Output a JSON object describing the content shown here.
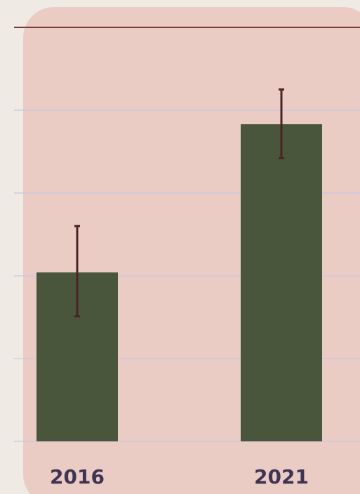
{
  "colors": {
    "page_background": "#efebe4",
    "plot_background": "#eaccc5",
    "bar": "#4a563b",
    "error_bar": "#4a2424",
    "gridline": "#c9c4e6",
    "top_line": "#7a3b36",
    "tick_label": "#3f3553"
  },
  "chart_data": {
    "type": "bar",
    "categories": [
      "2016",
      "2021"
    ],
    "values": [
      2.04,
      3.83
    ],
    "error_bars": [
      {
        "low": 1.51,
        "high": 2.6
      },
      {
        "low": 3.42,
        "high": 4.25
      }
    ],
    "ylim": [
      0,
      5
    ],
    "grid": true,
    "legend": "none"
  }
}
